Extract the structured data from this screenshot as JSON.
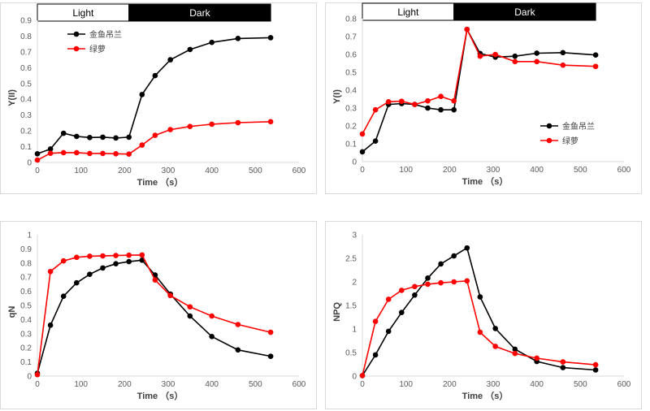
{
  "colors": {
    "series1": "#000000",
    "series2": "#ff0000",
    "axis": "#d9d9d9",
    "dark_band": "#000000"
  },
  "chart_data": [
    {
      "type": "line",
      "ylabel": "Y(II)",
      "xlabel": "Time （s）",
      "xlim": [
        0,
        600
      ],
      "xticks": [
        0,
        100,
        200,
        300,
        400,
        500,
        600
      ],
      "ylim": [
        0,
        0.9
      ],
      "yticks": [
        0,
        0.1,
        0.2,
        0.3,
        0.4,
        0.5,
        0.6,
        0.7,
        0.8,
        0.9
      ],
      "grid": false,
      "legend": "top-left",
      "bands": [
        {
          "label": "Light",
          "from": 0,
          "to": 210
        },
        {
          "label": "Dark",
          "from": 210,
          "to": 535
        }
      ],
      "x": [
        0,
        30,
        60,
        90,
        120,
        150,
        180,
        210,
        240,
        270,
        305,
        350,
        400,
        460,
        535
      ],
      "series": [
        {
          "name": "金鱼吊兰",
          "color": "#000000",
          "values": [
            0.055,
            0.085,
            0.185,
            0.165,
            0.158,
            0.16,
            0.155,
            0.16,
            0.43,
            0.55,
            0.65,
            0.715,
            0.76,
            0.785,
            0.79
          ]
        },
        {
          "name": "绿萝",
          "color": "#ff0000",
          "values": [
            0.015,
            0.058,
            0.062,
            0.062,
            0.057,
            0.057,
            0.055,
            0.053,
            0.11,
            0.172,
            0.208,
            0.228,
            0.242,
            0.252,
            0.258
          ]
        }
      ]
    },
    {
      "type": "line",
      "ylabel": "Y(I)",
      "xlabel": "Time （s）",
      "xlim": [
        0,
        600
      ],
      "xticks": [
        0,
        100,
        200,
        300,
        400,
        500,
        600
      ],
      "ylim": [
        0,
        0.8
      ],
      "yticks": [
        0,
        0.1,
        0.2,
        0.3,
        0.4,
        0.5,
        0.6,
        0.7,
        0.8
      ],
      "grid": false,
      "legend": "bottom-right",
      "bands": [
        {
          "label": "Light",
          "from": 0,
          "to": 210
        },
        {
          "label": "Dark",
          "from": 210,
          "to": 535
        }
      ],
      "x": [
        0,
        30,
        60,
        90,
        120,
        150,
        180,
        210,
        240,
        270,
        305,
        350,
        400,
        460,
        535
      ],
      "series": [
        {
          "name": "金鱼吊兰",
          "color": "#000000",
          "values": [
            0.055,
            0.115,
            0.32,
            0.325,
            0.32,
            0.3,
            0.29,
            0.29,
            0.74,
            0.605,
            0.585,
            0.59,
            0.607,
            0.61,
            0.597
          ]
        },
        {
          "name": "绿萝",
          "color": "#ff0000",
          "values": [
            0.155,
            0.29,
            0.335,
            0.338,
            0.32,
            0.34,
            0.365,
            0.34,
            0.74,
            0.59,
            0.6,
            0.56,
            0.56,
            0.54,
            0.533
          ]
        }
      ]
    },
    {
      "type": "line",
      "ylabel": "qN",
      "xlabel": "Time （s）",
      "xlim": [
        0,
        600
      ],
      "xticks": [
        0,
        100,
        200,
        300,
        400,
        500,
        600
      ],
      "ylim": [
        0,
        1
      ],
      "yticks": [
        0,
        0.1,
        0.2,
        0.3,
        0.4,
        0.5,
        0.6,
        0.7,
        0.8,
        0.9,
        1
      ],
      "grid": false,
      "x": [
        0,
        30,
        60,
        90,
        120,
        150,
        180,
        210,
        240,
        270,
        305,
        350,
        400,
        460,
        535
      ],
      "series": [
        {
          "color": "#000000",
          "values": [
            0.02,
            0.36,
            0.565,
            0.66,
            0.72,
            0.765,
            0.795,
            0.81,
            0.82,
            0.715,
            0.58,
            0.425,
            0.28,
            0.185,
            0.14
          ]
        },
        {
          "color": "#ff0000",
          "values": [
            0.01,
            0.74,
            0.815,
            0.84,
            0.848,
            0.85,
            0.853,
            0.855,
            0.857,
            0.68,
            0.57,
            0.49,
            0.425,
            0.365,
            0.31
          ]
        }
      ]
    },
    {
      "type": "line",
      "ylabel": "NPQ",
      "xlabel": "Time （s）",
      "xlim": [
        0,
        600
      ],
      "xticks": [
        0,
        100,
        200,
        300,
        400,
        500,
        600
      ],
      "ylim": [
        0,
        3
      ],
      "yticks": [
        0,
        0.5,
        1,
        1.5,
        2,
        2.5,
        3
      ],
      "grid": false,
      "x": [
        0,
        30,
        60,
        90,
        120,
        150,
        180,
        210,
        240,
        270,
        305,
        350,
        400,
        460,
        535
      ],
      "series": [
        {
          "color": "#000000",
          "values": [
            0.01,
            0.45,
            0.95,
            1.35,
            1.72,
            2.08,
            2.38,
            2.55,
            2.72,
            1.68,
            1.01,
            0.57,
            0.31,
            0.18,
            0.13
          ]
        },
        {
          "color": "#ff0000",
          "values": [
            0.01,
            1.16,
            1.63,
            1.82,
            1.9,
            1.95,
            1.98,
            2.0,
            2.02,
            0.93,
            0.63,
            0.48,
            0.38,
            0.3,
            0.24
          ]
        }
      ]
    }
  ]
}
